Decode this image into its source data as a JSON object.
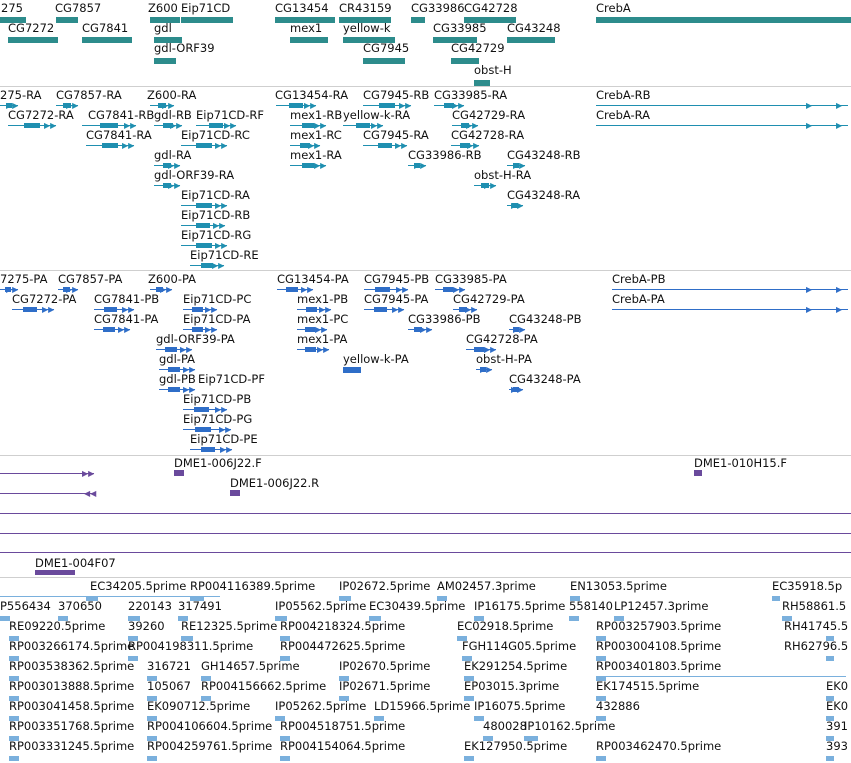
{
  "colors": {
    "gene": "#2d8c8c",
    "mrna": "#1f8fb0",
    "cds": "#2f6ec8",
    "clone": "#6a4a9c",
    "est": "#7ab0dd",
    "separator": "#cfcfcf"
  },
  "tracks": {
    "genes": {
      "labels": [
        "275",
        "CG7857",
        "Z600",
        "Eip71CD",
        "CG13454",
        "CR43159",
        "CG33986",
        "CG42728",
        "CrebA",
        "CG7272",
        "CG7841",
        "gdl",
        "mex1",
        "yellow-k",
        "CG33985",
        "CG43248",
        "gdl-ORF39",
        "CG7945",
        "CG42729",
        "obst-H"
      ]
    },
    "transcripts": {
      "labels": [
        "275-RA",
        "CG7857-RA",
        "Z600-RA",
        "CG13454-RA",
        "CG7945-RB",
        "CG33985-RA",
        "CrebA-RB",
        "CG7272-RA",
        "CG7841-RB",
        "gdl-RB",
        "Eip71CD-RF",
        "mex1-RB",
        "yellow-k-RA",
        "CG42729-RA",
        "CrebA-RA",
        "CG7841-RA",
        "Eip71CD-RC",
        "mex1-RC",
        "CG7945-RA",
        "CG42728-RA",
        "gdl-RA",
        "mex1-RA",
        "CG33986-RB",
        "CG43248-RB",
        "gdl-ORF39-RA",
        "obst-H-RA",
        "Eip71CD-RA",
        "CG43248-RA",
        "Eip71CD-RB",
        "Eip71CD-RG",
        "Eip71CD-RE"
      ]
    },
    "proteins": {
      "labels": [
        "7275-PA",
        "CG7857-PA",
        "Z600-PA",
        "CG13454-PA",
        "CG7945-PB",
        "CG33985-PA",
        "CrebA-PB",
        "CG7272-PA",
        "CG7841-PB",
        "Eip71CD-PC",
        "mex1-PB",
        "CG7945-PA",
        "CG42729-PA",
        "CrebA-PA",
        "CG7841-PA",
        "Eip71CD-PA",
        "mex1-PC",
        "CG33986-PB",
        "CG43248-PB",
        "gdl-ORF39-PA",
        "mex1-PA",
        "CG42728-PA",
        "gdl-PA",
        "yellow-k-PA",
        "obst-H-PA",
        "gdl-PB",
        "Eip71CD-PF",
        "CG43248-PA",
        "Eip71CD-PB",
        "Eip71CD-PG",
        "Eip71CD-PE"
      ]
    },
    "clones": {
      "labels": [
        "DME1-006J22.F",
        "DME1-010H15.F",
        "DME1-006J22.R",
        "DME1-004F07"
      ]
    },
    "ests": {
      "labels": [
        "EC34205.5prime",
        "RP004116389.5prime",
        "IP02672.5prime",
        "AM02457.3prime",
        "EN13053.5prime",
        "EC35918.5p",
        "P556434",
        "370650",
        "220143",
        "317491",
        "IP05562.5prime",
        "EC30439.5prime",
        "IP16175.5prime",
        "558140",
        "LP12457.3prime",
        "RH58861.5",
        "RE09220.5prime",
        "39260",
        "RE12325.5prime",
        "RP004218324.5prime",
        "EC02918.5prime",
        "RP003257903.5prime",
        "RH41745.5",
        "RP003266174.5prime",
        "RP004198311.5prime",
        "RP004472625.5prime",
        "FGH114G05.5prime",
        "RP003004108.5prime",
        "RH62796.5",
        "RP003538362.5prime",
        "316721",
        "GH14657.5prime",
        "IP02670.5prime",
        "EK291254.5prime",
        "RP003401803.5prime",
        "RP003013888.5prime",
        "105067",
        "RP004156662.5prime",
        "IP02671.5prime",
        "EP03015.3prime",
        "EK174515.5prime",
        "EK0",
        "RP003041458.5prime",
        "EK090712.5prime",
        "IP05262.5prime",
        "LD15966.5prime",
        "IP16075.5prime",
        "432886",
        "EK0",
        "RP003351768.5prime",
        "RP004106604.5prime",
        "RP004518751.5prime",
        "480028",
        "IP10162.5prime",
        "391",
        "RP003331245.5prime",
        "RP004259761.5prime",
        "RP004154064.5prime",
        "EK127950.5prime",
        "RP003462470.5prime",
        "393"
      ]
    }
  }
}
